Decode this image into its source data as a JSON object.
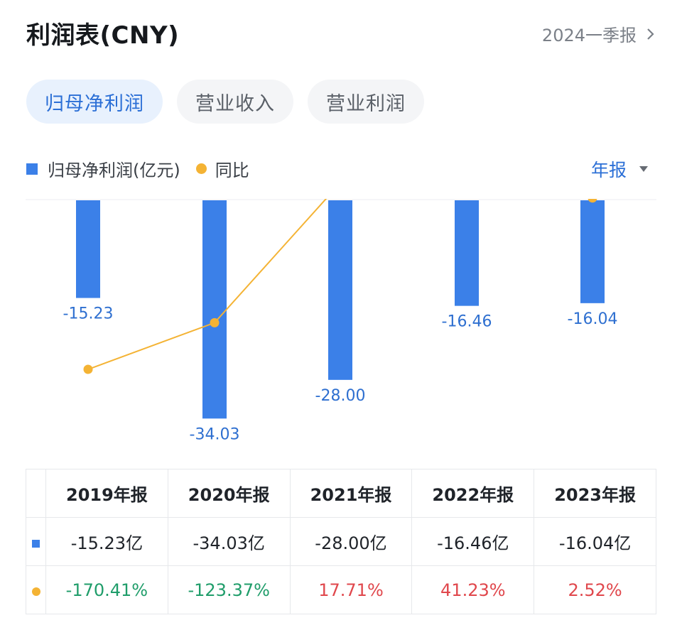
{
  "header": {
    "title": "利润表(CNY)",
    "period": "2024一季报"
  },
  "tabs": [
    {
      "label": "归母净利润",
      "active": true
    },
    {
      "label": "营业收入",
      "active": false
    },
    {
      "label": "营业利润",
      "active": false
    }
  ],
  "legend": {
    "bar_label": "归母净利润(亿元)",
    "line_label": "同比"
  },
  "report_type": "年报",
  "colors": {
    "bar": "#3b80e8",
    "line": "#f4b334",
    "accent": "#2b6fd6",
    "negative": "#1f9d6a",
    "positive": "#e0474c"
  },
  "chart_data": {
    "type": "bar",
    "title": "归母净利润(亿元)",
    "categories": [
      "2019年报",
      "2020年报",
      "2021年报",
      "2022年报",
      "2023年报"
    ],
    "series": [
      {
        "name": "归母净利润(亿元)",
        "type": "bar",
        "values": [
          -15.23,
          -34.03,
          -28.0,
          -16.46,
          -16.04
        ]
      },
      {
        "name": "同比",
        "type": "line",
        "unit": "%",
        "values": [
          -170.41,
          -123.37,
          17.71,
          41.23,
          2.52
        ]
      }
    ],
    "ylim": [
      -36,
      0
    ],
    "line_ylim": [
      -220,
      80
    ],
    "bar_labels": [
      "-15.23",
      "-34.03",
      "-28.00",
      "-16.46",
      "-16.04"
    ]
  },
  "table": {
    "headers": [
      "2019年报",
      "2020年报",
      "2021年报",
      "2022年报",
      "2023年报"
    ],
    "profit_row": [
      "-15.23亿",
      "-34.03亿",
      "-28.00亿",
      "-16.46亿",
      "-16.04亿"
    ],
    "yoy_row": [
      "-170.41%",
      "-123.37%",
      "17.71%",
      "41.23%",
      "2.52%"
    ]
  }
}
